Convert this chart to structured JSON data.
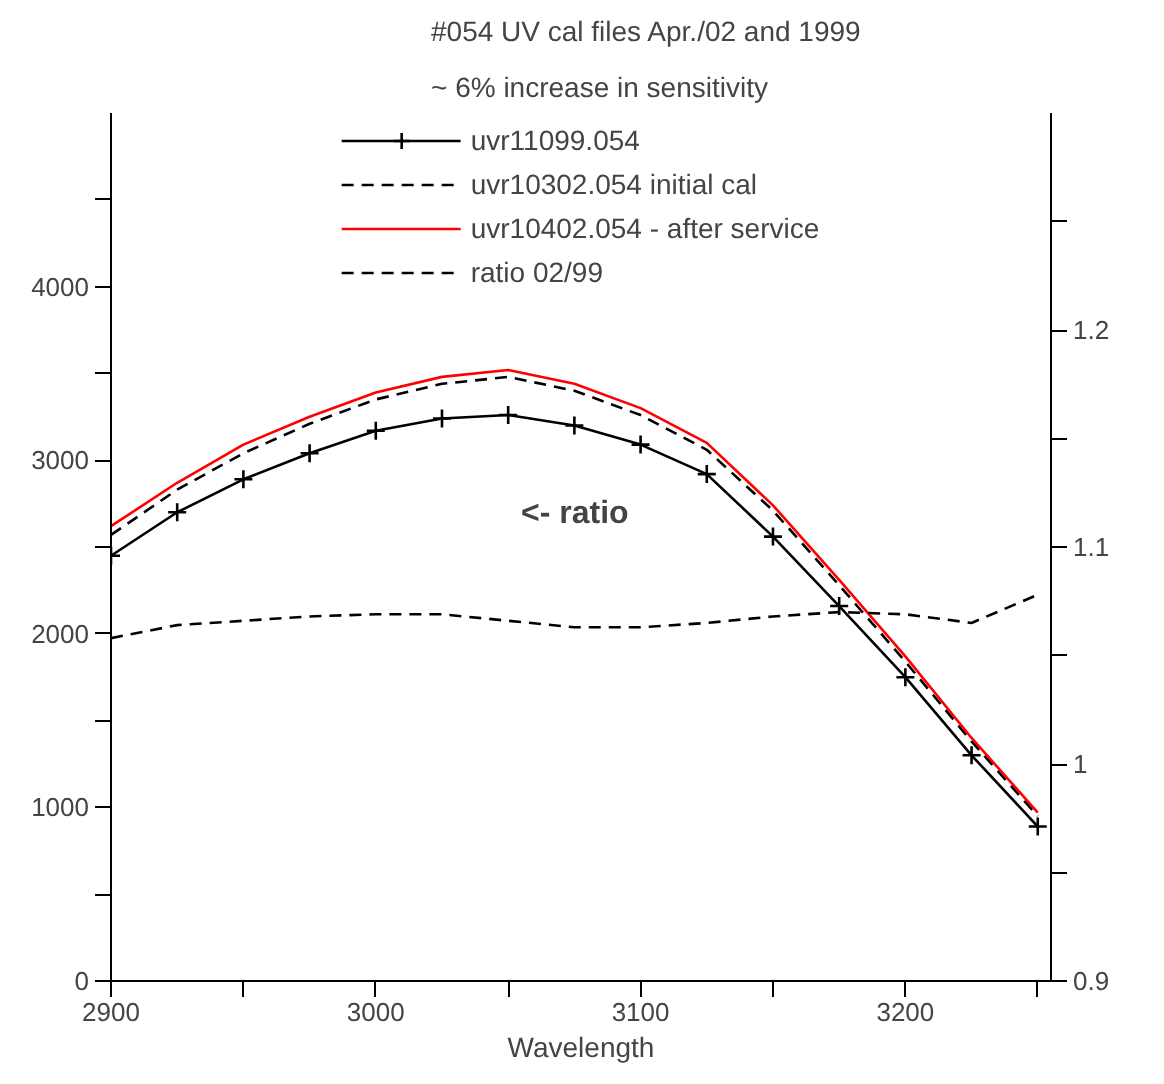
{
  "chart_data": {
    "type": "line",
    "title": "#054 UV cal files Apr./02 and 1999",
    "subtitle": "~ 6% increase in sensitivity",
    "xlabel": "Wavelength",
    "x": [
      2900,
      2925,
      2950,
      2975,
      3000,
      3025,
      3050,
      3075,
      3100,
      3125,
      3150,
      3175,
      3200,
      3225,
      3250
    ],
    "series": [
      {
        "name": "uvr11099.054",
        "color": "#000000",
        "marker": "cross",
        "line_style": "solid",
        "values": [
          2450,
          2700,
          2890,
          3040,
          3170,
          3240,
          3260,
          3200,
          3090,
          2920,
          2560,
          2160,
          1750,
          1300,
          890
        ]
      },
      {
        "name": "uvr10302.054 initial cal",
        "color": "#000000",
        "marker": "none",
        "line_style": "dashed",
        "values": [
          2570,
          2830,
          3040,
          3210,
          3350,
          3440,
          3480,
          3400,
          3260,
          3060,
          2710,
          2280,
          1840,
          1380,
          950
        ]
      },
      {
        "name": "uvr10402.054 - after service",
        "color": "#ff0000",
        "marker": "none",
        "line_style": "solid",
        "values": [
          2620,
          2870,
          3090,
          3250,
          3390,
          3480,
          3520,
          3440,
          3300,
          3100,
          2740,
          2310,
          1870,
          1400,
          970
        ]
      },
      {
        "name": "ratio 02/99",
        "color": "#000000",
        "marker": "none",
        "line_style": "dashed",
        "axis": "y2",
        "values": [
          1.058,
          1.064,
          1.066,
          1.068,
          1.069,
          1.069,
          1.066,
          1.063,
          1.063,
          1.065,
          1.068,
          1.07,
          1.069,
          1.065,
          1.078
        ]
      }
    ],
    "xlim": [
      2900,
      3255
    ],
    "ylim": [
      0,
      5000
    ],
    "y2lim": [
      0.9,
      1.3
    ],
    "xticks": [
      2900,
      {
        "value": 2950,
        "label": null
      },
      3000,
      {
        "value": 3050,
        "label": null
      },
      3100,
      {
        "value": 3150,
        "label": null
      },
      3200,
      {
        "value": 3250,
        "label": null
      }
    ],
    "yticks": [
      0,
      {
        "value": 500,
        "label": null
      },
      1000,
      {
        "value": 1500,
        "label": null
      },
      2000,
      {
        "value": 2500,
        "label": null
      },
      3000,
      {
        "value": 3500,
        "label": null
      },
      4000,
      {
        "value": 4500,
        "label": null
      }
    ],
    "y2ticks": [
      0.9,
      {
        "value": 0.95,
        "label": null
      },
      {
        "value": 1.0,
        "label": "1"
      },
      {
        "value": 1.05,
        "label": null
      },
      1.1,
      {
        "value": 1.15,
        "label": null
      },
      1.2,
      {
        "value": 1.25,
        "label": null
      }
    ],
    "annotations": [
      "<-  ratio"
    ],
    "grid": false,
    "legend": "top"
  }
}
